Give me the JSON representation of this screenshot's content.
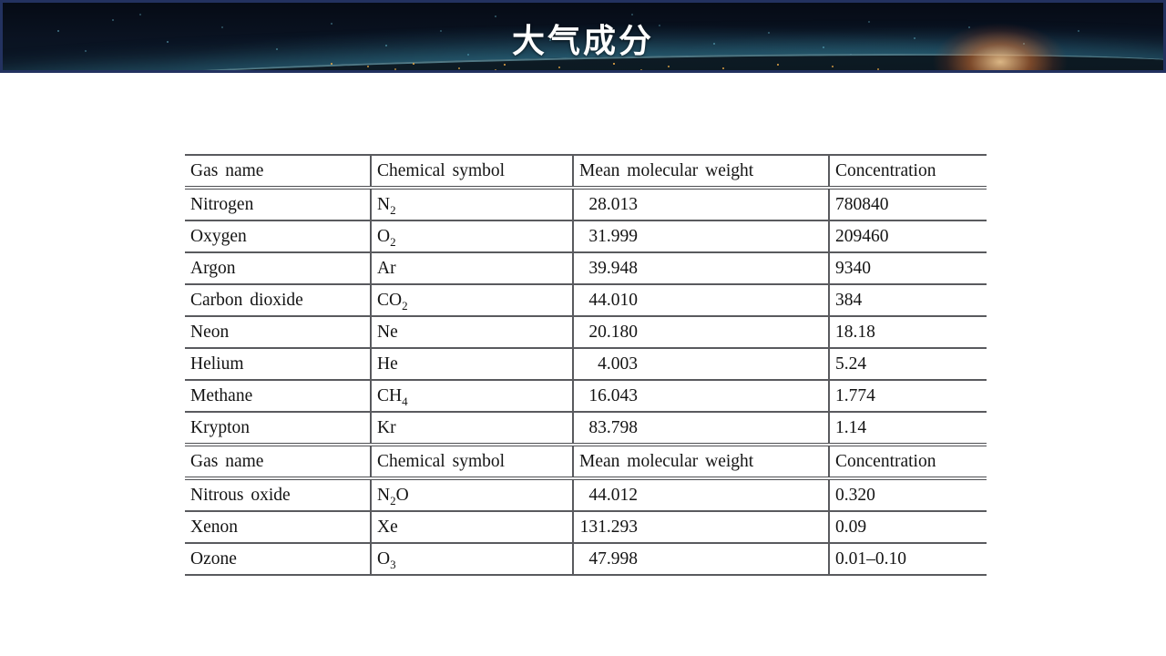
{
  "banner": {
    "title": "大气成分",
    "background_color": "#0a111d",
    "border_color": "#233260",
    "title_color": "#ffffff",
    "atmosphere_glow_color": "#2a687c",
    "sun_glow_color": "#e97832",
    "star_color": "#6ebed2",
    "city_light_color": "#ebaa46"
  },
  "table": {
    "headers": [
      "Gas name",
      "Chemical symbol",
      "Mean molecular weight",
      "Concentration"
    ],
    "line_color": "#595a5e",
    "text_color": "#141414",
    "rows": [
      {
        "type": "header"
      },
      {
        "type": "data",
        "name": "Nitrogen",
        "symbol": [
          [
            "N",
            false
          ],
          [
            "2",
            true
          ]
        ],
        "weight": "28.013",
        "concentration": "780840"
      },
      {
        "type": "data",
        "name": "Oxygen",
        "symbol": [
          [
            "O",
            false
          ],
          [
            "2",
            true
          ]
        ],
        "weight": "31.999",
        "concentration": "209460"
      },
      {
        "type": "data",
        "name": "Argon",
        "symbol": [
          [
            "Ar",
            false
          ]
        ],
        "weight": "39.948",
        "concentration": "9340"
      },
      {
        "type": "data",
        "name": "Carbon dioxide",
        "symbol": [
          [
            "CO",
            false
          ],
          [
            "2",
            true
          ]
        ],
        "weight": "44.010",
        "concentration": "384"
      },
      {
        "type": "data",
        "name": "Neon",
        "symbol": [
          [
            "Ne",
            false
          ]
        ],
        "weight": "20.180",
        "concentration": "18.18"
      },
      {
        "type": "data",
        "name": "Helium",
        "symbol": [
          [
            "He",
            false
          ]
        ],
        "weight": "4.003",
        "concentration": "5.24"
      },
      {
        "type": "data",
        "name": "Methane",
        "symbol": [
          [
            "CH",
            false
          ],
          [
            "4",
            true
          ]
        ],
        "weight": "16.043",
        "concentration": "1.774"
      },
      {
        "type": "data",
        "name": "Krypton",
        "symbol": [
          [
            "Kr",
            false
          ]
        ],
        "weight": "83.798",
        "concentration": "1.14"
      },
      {
        "type": "header"
      },
      {
        "type": "data",
        "name": "Nitrous oxide",
        "symbol": [
          [
            "N",
            false
          ],
          [
            "2",
            true
          ],
          [
            "O",
            false
          ]
        ],
        "weight": "44.012",
        "concentration": "0.320"
      },
      {
        "type": "data",
        "name": "Xenon",
        "symbol": [
          [
            "Xe",
            false
          ]
        ],
        "weight": "131.293",
        "concentration": "0.09"
      },
      {
        "type": "data",
        "name": "Ozone",
        "symbol": [
          [
            "O",
            false
          ],
          [
            "3",
            true
          ]
        ],
        "weight": "47.998",
        "concentration": "0.01–0.10"
      }
    ]
  }
}
